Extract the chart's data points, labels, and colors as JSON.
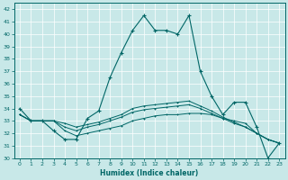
{
  "xlabel": "Humidex (Indice chaleur)",
  "background_color": "#c8e8e8",
  "grid_color": "#ffffff",
  "line_color": "#006666",
  "xlim": [
    -0.5,
    23.5
  ],
  "ylim": [
    30,
    42.5
  ],
  "yticks": [
    30,
    31,
    32,
    33,
    34,
    35,
    36,
    37,
    38,
    39,
    40,
    41,
    42
  ],
  "xticks": [
    0,
    1,
    2,
    3,
    4,
    5,
    6,
    7,
    8,
    9,
    10,
    11,
    12,
    13,
    14,
    15,
    16,
    17,
    18,
    19,
    20,
    21,
    22,
    23
  ],
  "line1": {
    "x": [
      0,
      1,
      2,
      3,
      4,
      5,
      6,
      7,
      8,
      9,
      10,
      11,
      12,
      13,
      14,
      15,
      16,
      17,
      18,
      19,
      20,
      21,
      22,
      23
    ],
    "y": [
      34,
      33,
      33,
      32.2,
      31.5,
      31.5,
      33.2,
      33.8,
      36.5,
      38.5,
      40.3,
      41.5,
      40.3,
      40.3,
      40,
      41.5,
      37,
      35,
      33.5,
      34.5,
      34.5,
      32.5,
      30,
      31.2
    ],
    "marker": "+"
  },
  "line2": {
    "x": [
      0,
      1,
      2,
      3,
      4,
      5,
      6,
      7,
      8,
      9,
      10,
      11,
      12,
      13,
      14,
      15,
      16,
      17,
      18,
      19,
      20,
      21,
      22,
      23
    ],
    "y": [
      33.5,
      33.0,
      33.0,
      33.0,
      32.2,
      31.8,
      32.0,
      32.2,
      32.4,
      32.6,
      33.0,
      33.2,
      33.4,
      33.5,
      33.5,
      33.6,
      33.6,
      33.5,
      33.2,
      33.0,
      32.8,
      32.0,
      31.5,
      31.2
    ],
    "marker": "+"
  },
  "line3": {
    "x": [
      0,
      1,
      2,
      3,
      4,
      5,
      6,
      7,
      8,
      9,
      10,
      11,
      12,
      13,
      14,
      15,
      16,
      17,
      18,
      19,
      20,
      21,
      22,
      23
    ],
    "y": [
      33.5,
      33.0,
      33.0,
      33.0,
      32.5,
      32.2,
      32.5,
      32.7,
      33.0,
      33.3,
      33.7,
      33.9,
      34.0,
      34.1,
      34.2,
      34.3,
      34.0,
      33.6,
      33.2,
      32.8,
      32.5,
      32.0,
      31.5,
      31.2
    ],
    "marker": "+"
  },
  "line4": {
    "x": [
      0,
      1,
      2,
      3,
      4,
      5,
      6,
      7,
      8,
      9,
      10,
      11,
      12,
      13,
      14,
      15,
      16,
      17,
      18,
      19,
      20,
      21,
      22,
      23
    ],
    "y": [
      33.5,
      33.0,
      33.0,
      33.0,
      32.8,
      32.5,
      32.7,
      32.9,
      33.2,
      33.5,
      34.0,
      34.2,
      34.3,
      34.4,
      34.5,
      34.6,
      34.2,
      33.8,
      33.3,
      32.9,
      32.5,
      32.0,
      31.5,
      31.2
    ],
    "marker": "+"
  }
}
